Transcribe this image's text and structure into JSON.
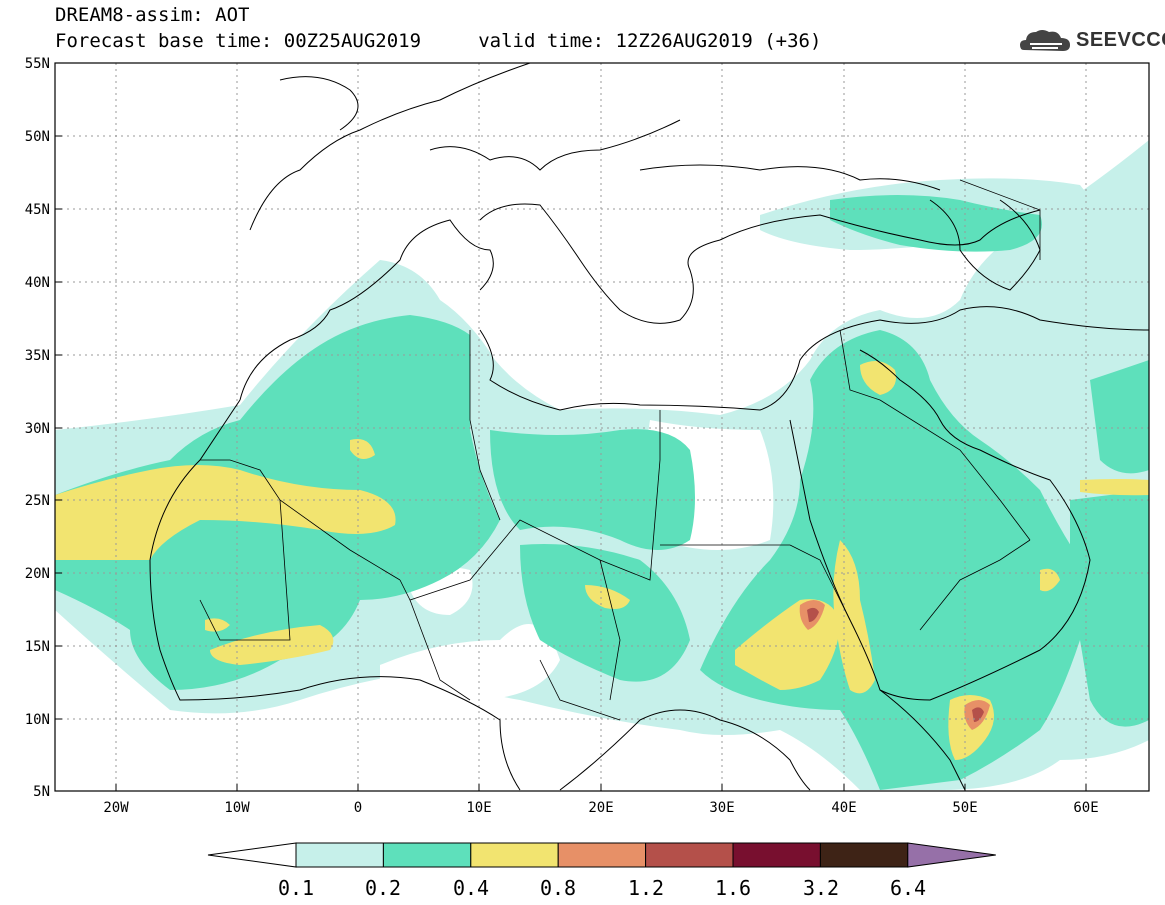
{
  "header": {
    "line1": "DREAM8-assim: AOT",
    "line2": "Forecast base time: 00Z25AUG2019     valid time: 12Z26AUG2019 (+36)"
  },
  "logo": {
    "text": "SEEVCCC",
    "icon": "cloud-logo-icon"
  },
  "map": {
    "lat_ticks": [
      "55N",
      "50N",
      "45N",
      "40N",
      "35N",
      "30N",
      "25N",
      "20N",
      "15N",
      "10N",
      "5N"
    ],
    "lon_ticks": [
      "20W",
      "10W",
      "0",
      "10E",
      "20E",
      "30E",
      "40E",
      "50E",
      "60E"
    ],
    "lat_range": [
      5,
      55
    ],
    "lon_range": [
      -25,
      65
    ],
    "grid": true
  },
  "colorbar": {
    "labels": [
      "0.1",
      "0.2",
      "0.4",
      "0.8",
      "1.2",
      "1.6",
      "3.2",
      "6.4"
    ],
    "colors": [
      "#ffffff",
      "#c6f0ea",
      "#5ee0bb",
      "#f2e470",
      "#e79067",
      "#b4504a",
      "#780f2f",
      "#3e2316",
      "#9670a8"
    ]
  },
  "colors": {
    "white": "#ffffff",
    "light": "#c6f0ea",
    "green": "#5ee0bb",
    "yellow": "#f2e470",
    "orange": "#e79067",
    "red": "#b4504a"
  }
}
